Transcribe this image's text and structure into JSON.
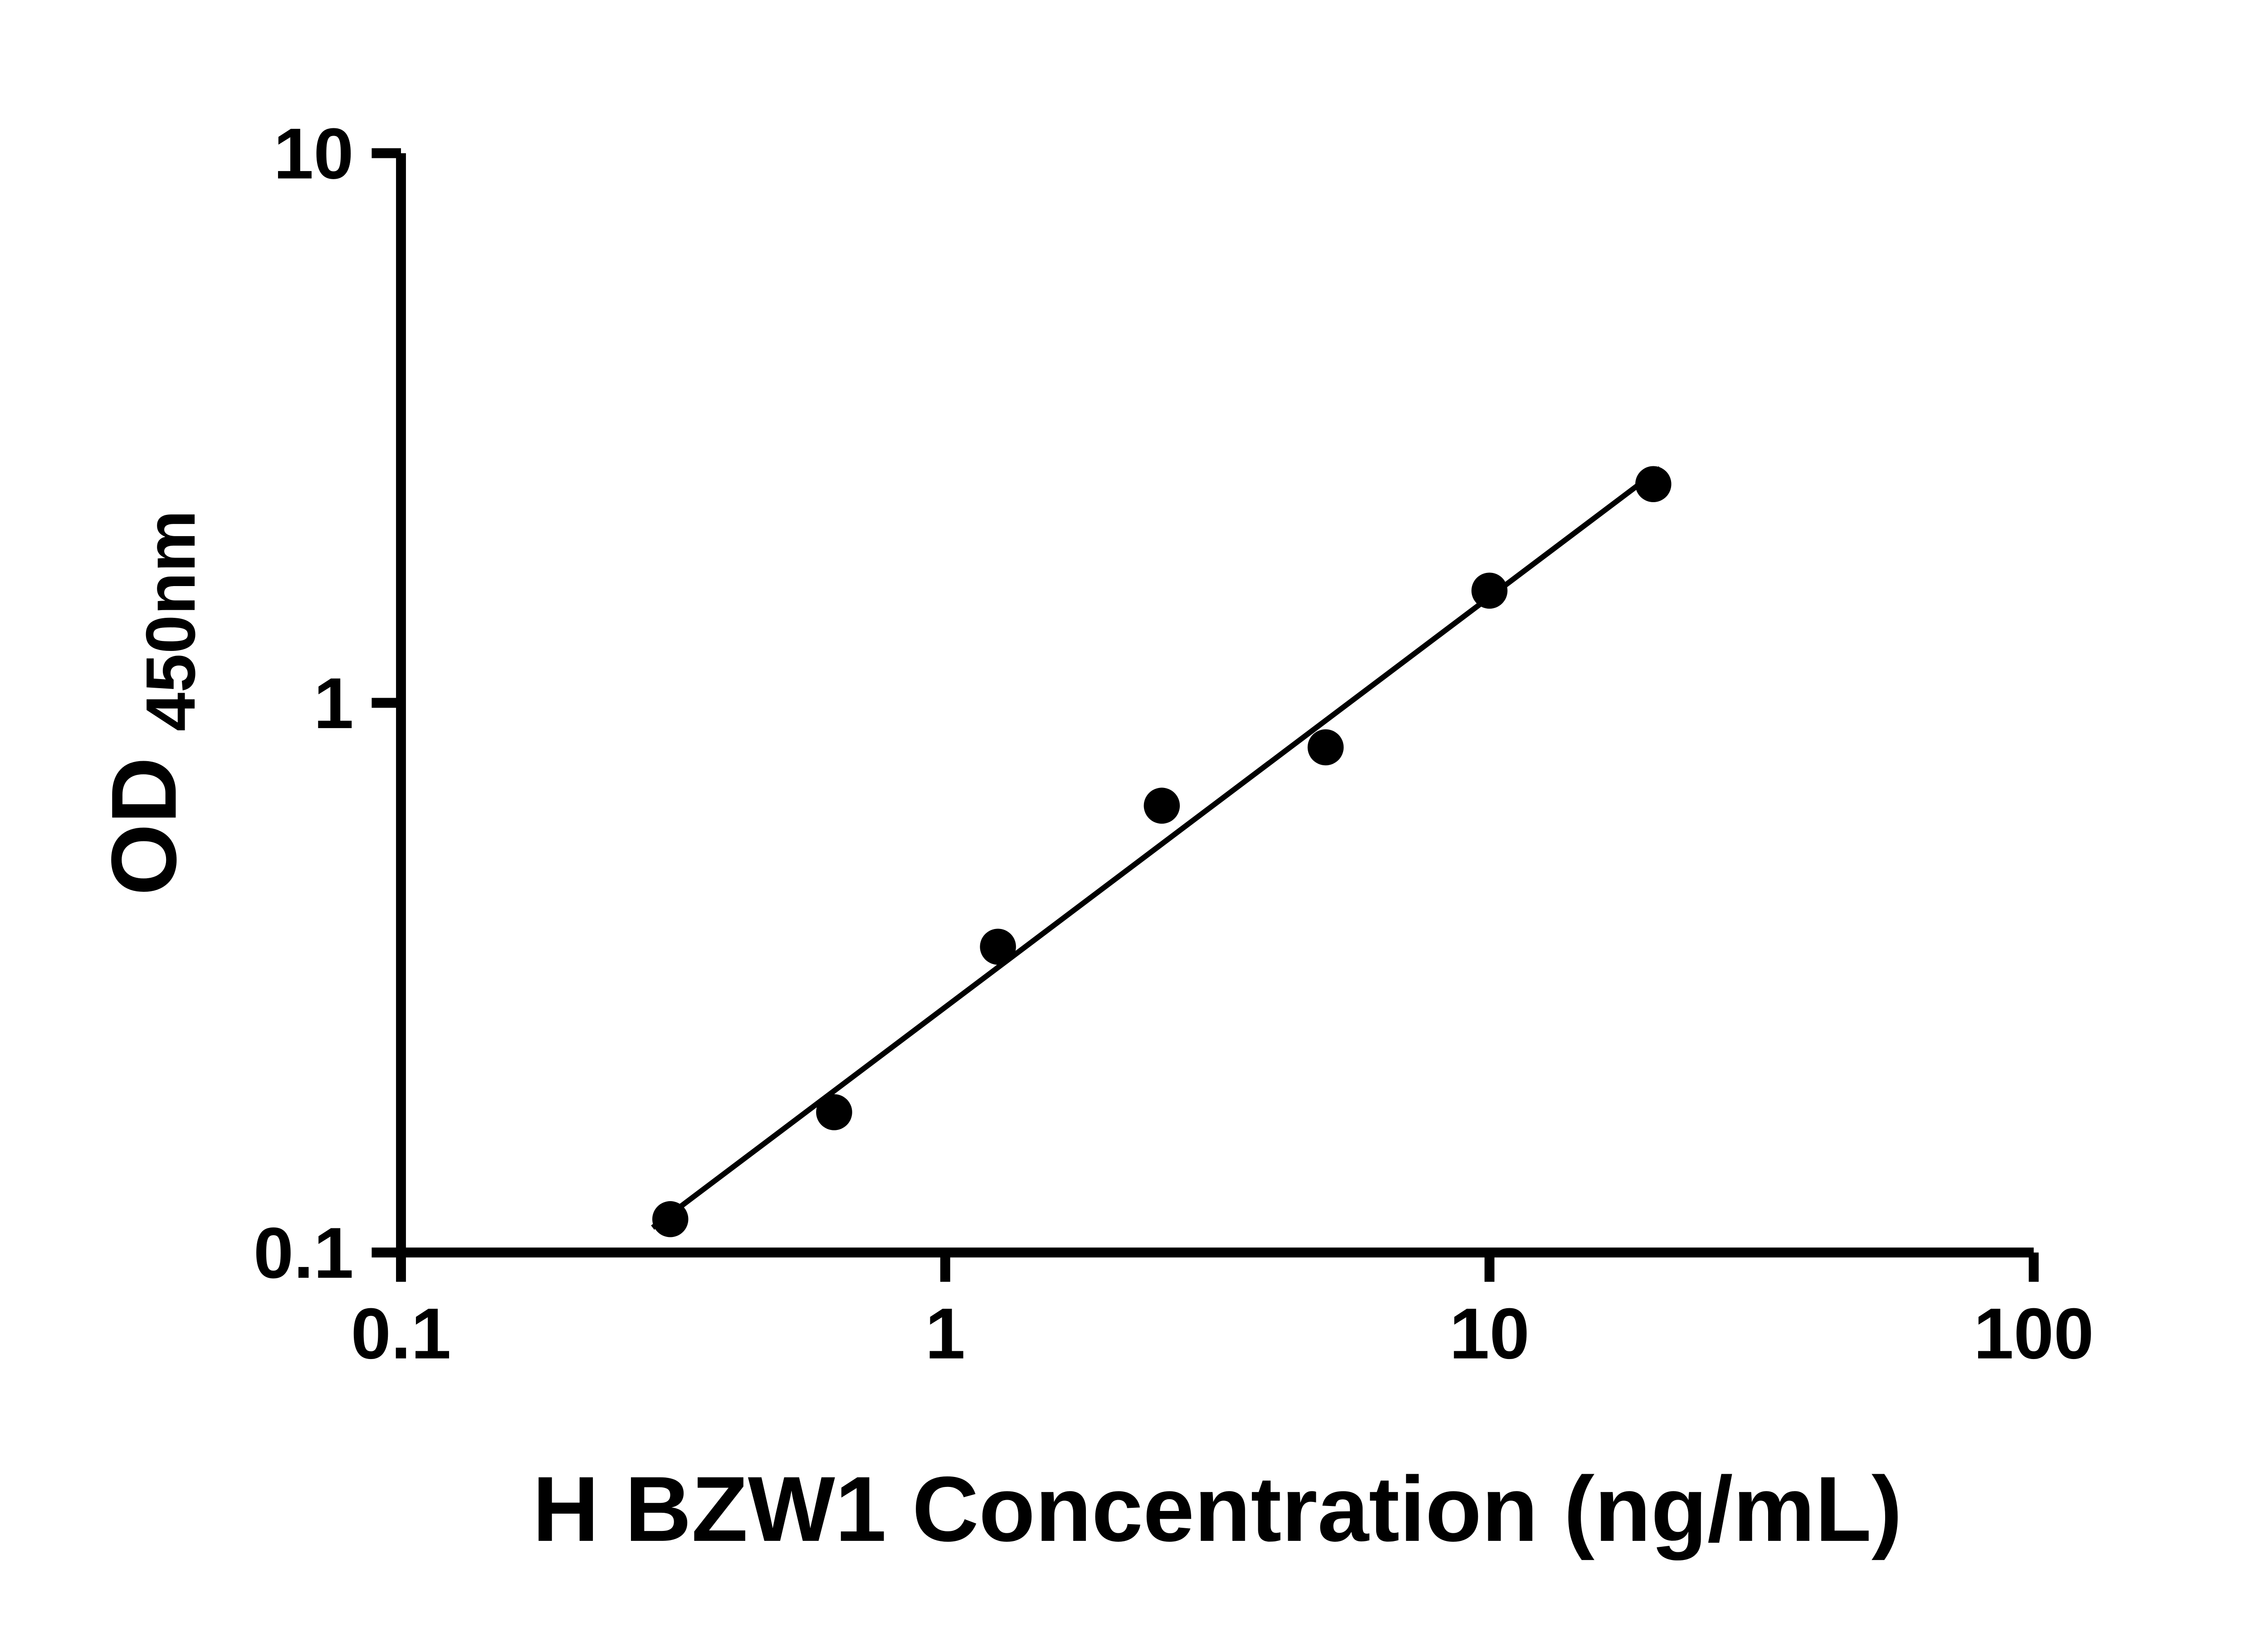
{
  "chart_data": {
    "type": "scatter",
    "title": "",
    "xlabel": "H BZW1 Concentration (ng/mL)",
    "ylabel_main": "OD",
    "ylabel_sub": "450nm",
    "x_scale": "log",
    "y_scale": "log",
    "xlim": [
      0.1,
      100
    ],
    "ylim": [
      0.1,
      10
    ],
    "x_ticks": [
      "0.1",
      "1",
      "10",
      "100"
    ],
    "y_ticks": [
      "0.1",
      "1",
      "10"
    ],
    "grid": false,
    "legend": "none",
    "points": {
      "x": [
        0.3125,
        0.625,
        1.25,
        2.5,
        5,
        10,
        20
      ],
      "y": [
        0.115,
        0.18,
        0.36,
        0.65,
        0.83,
        1.6,
        2.5
      ]
    },
    "trendline": {
      "x1": 0.29,
      "y1": 0.111,
      "x2": 20.6,
      "y2": 2.67
    },
    "colors": {
      "points": "#000000",
      "line": "#000000",
      "axis": "#000000",
      "text": "#000000",
      "background": "#ffffff"
    }
  }
}
